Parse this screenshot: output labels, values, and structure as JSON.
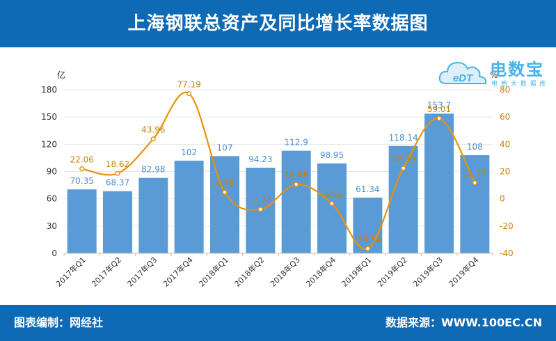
{
  "header": {
    "title": "上海钢联总资产及同比增长率数据图"
  },
  "footer": {
    "left": "图表编制：网经社",
    "right": "数据来源：WWW.100EC.CN"
  },
  "logo": {
    "brand": "电数宝",
    "sub": "电 商 大 数 据 库",
    "mark": "eDT"
  },
  "colors": {
    "bar": "#5b9bd5",
    "line": "#e8920a",
    "bar_label": "#4a8fd0",
    "line_label": "#c98008",
    "header_bg": "#0e6ab4"
  },
  "chart_data": {
    "type": "bar+line",
    "categories": [
      "2017年Q1",
      "2017年Q2",
      "2017年Q3",
      "2017年Q4",
      "2018年Q1",
      "2018年Q2",
      "2018年Q3",
      "2018年Q4",
      "2019年Q1",
      "2019年Q2",
      "2019年Q3",
      "2019年Q4"
    ],
    "series": [
      {
        "type": "bar",
        "axis": "left",
        "values": [
          70.35,
          68.37,
          82.98,
          102,
          107,
          94.23,
          112.9,
          98.95,
          61.34,
          118.14,
          153.7,
          108
        ]
      },
      {
        "type": "line",
        "axis": "right",
        "values": [
          22.06,
          18.62,
          43.96,
          77.19,
          4.78,
          -7.74,
          10.58,
          -3.52,
          -36.54,
          22.39,
          59.01,
          11.77
        ]
      }
    ],
    "left_axis": {
      "unit": "亿",
      "min": 0,
      "max": 180,
      "ticks": [
        0,
        30,
        60,
        90,
        120,
        150,
        180
      ]
    },
    "right_axis": {
      "unit": "%",
      "min": -40,
      "max": 80,
      "ticks": [
        -40,
        -20,
        0,
        20,
        40,
        60,
        80
      ]
    },
    "grid": true
  }
}
